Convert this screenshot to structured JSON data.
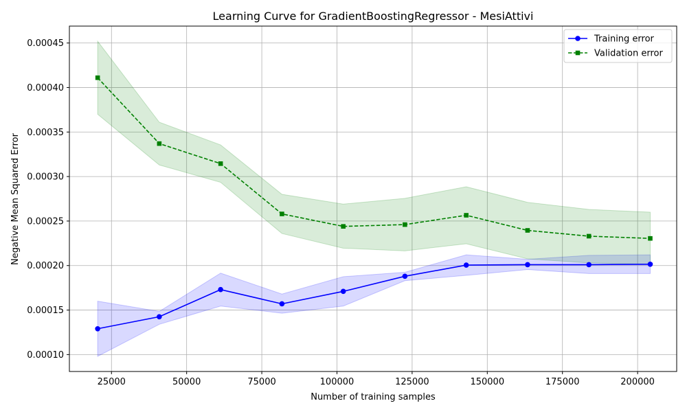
{
  "chart_data": {
    "type": "line",
    "title": "Learning Curve for GradientBoostingRegressor - MesiAttivi",
    "xlabel": "Number of training samples",
    "ylabel": "Negative Mean Squared Error",
    "xlim": [
      11000,
      213000
    ],
    "ylim": [
      8.1e-05,
      0.000469
    ],
    "grid": true,
    "legend_position": "top-right",
    "x_ticks": [
      25000,
      50000,
      75000,
      100000,
      125000,
      150000,
      175000,
      200000
    ],
    "x_tick_labels": [
      "25000",
      "50000",
      "75000",
      "100000",
      "125000",
      "150000",
      "175000",
      "200000"
    ],
    "y_ticks": [
      0.0001,
      0.00015,
      0.0002,
      0.00025,
      0.0003,
      0.00035,
      0.0004,
      0.00045
    ],
    "y_tick_labels": [
      "0.00010",
      "0.00015",
      "0.00020",
      "0.00025",
      "0.00030",
      "0.00035",
      "0.00040",
      "0.00045"
    ],
    "x": [
      20400,
      40900,
      61300,
      81700,
      102100,
      122600,
      143000,
      163400,
      183800,
      204200
    ],
    "series": [
      {
        "name": "Training error",
        "color": "#0000ff",
        "band_color": "#0000ff",
        "line_style": "solid",
        "marker": "circle",
        "values": [
          0.000129,
          0.0001425,
          0.000173,
          0.000157,
          0.000171,
          0.000188,
          0.0002005,
          0.000201,
          0.000201,
          0.0002015
        ],
        "lower": [
          9.8e-05,
          0.000134,
          0.0001545,
          0.0001465,
          0.0001545,
          0.000183,
          0.000189,
          0.0001955,
          0.000191,
          0.000191
        ],
        "upper": [
          0.00016,
          0.0001485,
          0.0001915,
          0.000168,
          0.0001875,
          0.0001925,
          0.000212,
          0.000207,
          0.0002115,
          0.000212
        ]
      },
      {
        "name": "Validation error",
        "color": "#008000",
        "band_color": "#008000",
        "line_style": "dashed",
        "marker": "square",
        "values": [
          0.000411,
          0.000337,
          0.0003145,
          0.000258,
          0.000244,
          0.000246,
          0.0002565,
          0.0002395,
          0.000233,
          0.0002305
        ],
        "lower": [
          0.00037,
          0.000313,
          0.0002935,
          0.000236,
          0.0002195,
          0.0002165,
          0.0002245,
          0.0002075,
          0.000203,
          0.0002015
        ],
        "upper": [
          0.000452,
          0.000361,
          0.0003355,
          0.00028,
          0.000269,
          0.0002755,
          0.0002885,
          0.000271,
          0.000263,
          0.00026
        ]
      }
    ]
  }
}
